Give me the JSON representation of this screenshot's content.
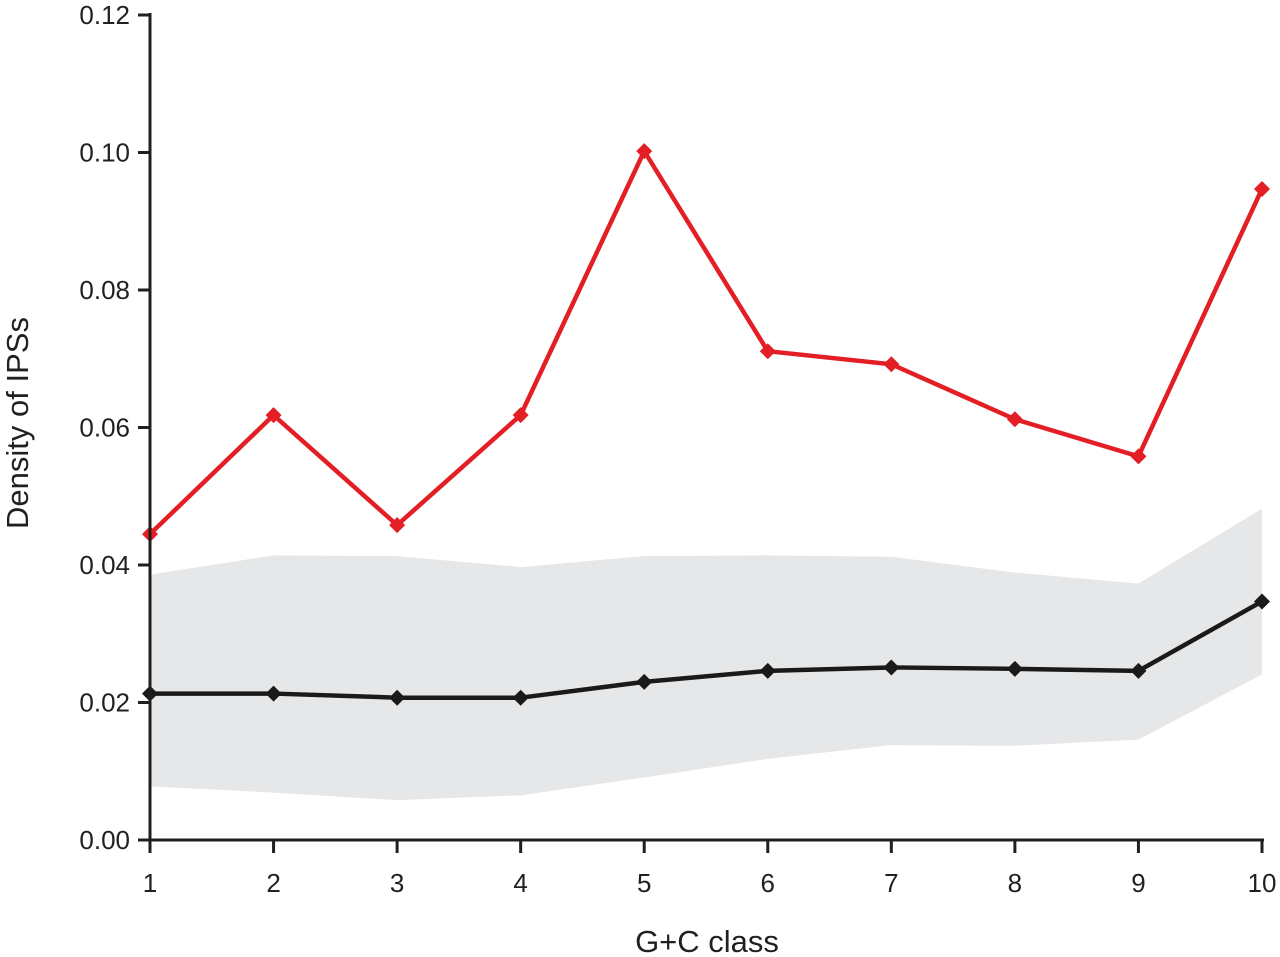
{
  "chart_data": {
    "type": "line",
    "xlabel": "G+C class",
    "ylabel": "Density of IPSs",
    "categories": [
      1,
      2,
      3,
      4,
      5,
      6,
      7,
      8,
      9,
      10
    ],
    "x_tick_labels": [
      "1",
      "2",
      "3",
      "4",
      "5",
      "6",
      "7",
      "8",
      "9",
      "10"
    ],
    "ylim": [
      0,
      0.12
    ],
    "y_ticks": [
      0.0,
      0.02,
      0.04,
      0.06,
      0.08,
      0.1,
      0.12
    ],
    "y_tick_labels": [
      "0.00",
      "0.02",
      "0.04",
      "0.06",
      "0.08",
      "0.10",
      "0.12"
    ],
    "grid": false,
    "legend": "none",
    "series": [
      {
        "color": "#e31e24",
        "marker": "diamond",
        "values": [
          0.0445,
          0.0618,
          0.0458,
          0.0618,
          0.1002,
          0.0711,
          0.0692,
          0.0612,
          0.0558,
          0.0947
        ]
      },
      {
        "color": "#1a1a1a",
        "marker": "diamond",
        "values": [
          0.0213,
          0.0213,
          0.0207,
          0.0207,
          0.023,
          0.0246,
          0.0251,
          0.0249,
          0.0246,
          0.0347
        ]
      }
    ],
    "band": {
      "color": "#e6e7e8",
      "upper": [
        0.0386,
        0.0414,
        0.0413,
        0.0397,
        0.0413,
        0.0414,
        0.0412,
        0.0389,
        0.0373,
        0.0482
      ],
      "lower": [
        0.0078,
        0.0069,
        0.0058,
        0.0065,
        0.0091,
        0.0118,
        0.0138,
        0.0137,
        0.0146,
        0.0241
      ]
    }
  }
}
